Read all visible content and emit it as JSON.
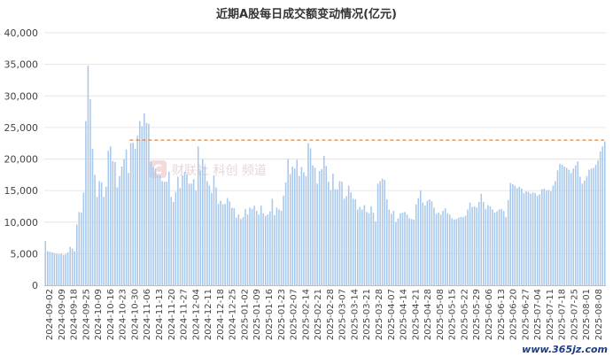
{
  "chart_data": {
    "type": "bar",
    "title": "近期A股每日成交额变动情况(亿元)",
    "ylabel": "",
    "xlabel": "",
    "ylim": [
      0,
      40000
    ],
    "yticks": [
      "0",
      "5,000",
      "10,000",
      "15,000",
      "20,000",
      "25,000",
      "30,000",
      "35,000",
      "40,000"
    ],
    "grid": "horizontal",
    "bar_color": "#a8c8ec",
    "reference_line": {
      "value": 23000,
      "start_index": 38,
      "color": "#e8823a",
      "style": "dashed"
    },
    "x_tick_labels": [
      "2024-09-02",
      "2024-09-09",
      "2024-09-18",
      "2024-09-25",
      "2024-10-09",
      "2024-10-16",
      "2024-10-23",
      "2024-10-30",
      "2024-11-06",
      "2024-11-13",
      "2024-11-20",
      "2024-11-27",
      "2024-12-04",
      "2024-12-11",
      "2024-12-18",
      "2024-12-25",
      "2025-01-02",
      "2025-01-09",
      "2025-01-16",
      "2025-01-23",
      "2025-02-07",
      "2025-02-14",
      "2025-02-21",
      "2025-02-28",
      "2025-03-07",
      "2025-03-14",
      "2025-03-21",
      "2025-03-28",
      "2025-04-07",
      "2025-04-14",
      "2025-04-21",
      "2025-04-28",
      "2025-05-08",
      "2025-05-15",
      "2025-05-22",
      "2025-05-29",
      "2025-06-06",
      "2025-06-13",
      "2025-06-20",
      "2025-06-27",
      "2025-07-04",
      "2025-07-11",
      "2025-07-18",
      "2025-07-25",
      "2025-08-01",
      "2025-08-08"
    ],
    "values": [
      7000,
      5400,
      5300,
      5200,
      5100,
      5000,
      4900,
      5000,
      4800,
      4900,
      5200,
      6100,
      5800,
      5400,
      9600,
      11600,
      11500,
      14700,
      26000,
      34800,
      29500,
      21600,
      17500,
      14000,
      16500,
      16300,
      14000,
      15600,
      21300,
      22000,
      19700,
      19500,
      15500,
      17300,
      18800,
      20000,
      21500,
      17800,
      22500,
      22600,
      21600,
      23700,
      26000,
      25200,
      27200,
      25700,
      25600,
      19500,
      18700,
      18500,
      17400,
      17400,
      16500,
      16400,
      16400,
      18000,
      14000,
      13200,
      14800,
      17200,
      15400,
      17400,
      18000,
      17600,
      16100,
      16100,
      16800,
      15000,
      22000,
      18100,
      20000,
      18800,
      16500,
      15800,
      14600,
      17400,
      15500,
      12900,
      13400,
      12800,
      12900,
      13800,
      13300,
      12300,
      12200,
      10700,
      11200,
      10500,
      10800,
      12100,
      11200,
      12300,
      12100,
      12600,
      11800,
      11200,
      12600,
      11400,
      11000,
      11200,
      11700,
      13700,
      11100,
      12300,
      12000,
      11800,
      14200,
      16300,
      20000,
      17600,
      18800,
      18500,
      19900,
      17300,
      18700,
      17900,
      17300,
      22500,
      21700,
      19000,
      18600,
      16100,
      18100,
      18400,
      20500,
      18900,
      16400,
      15100,
      17700,
      15200,
      15200,
      16500,
      16400,
      13700,
      14100,
      15800,
      14700,
      13700,
      13600,
      12000,
      12400,
      12000,
      12700,
      11600,
      11400,
      12500,
      11500,
      10100,
      16100,
      16500,
      16900,
      16700,
      13600,
      12000,
      11300,
      11800,
      10000,
      10600,
      11400,
      11500,
      11600,
      11200,
      10600,
      10500,
      10400,
      12800,
      13800,
      15000,
      13100,
      12600,
      13400,
      13600,
      13300,
      12300,
      11300,
      11500,
      11200,
      11800,
      12200,
      11400,
      11200,
      10600,
      10400,
      10500,
      10700,
      10800,
      10800,
      11000,
      12000,
      13100,
      12400,
      12500,
      12300,
      13200,
      14500,
      13200,
      12100,
      12700,
      12500,
      12000,
      11500,
      11700,
      12000,
      12100,
      11800,
      10800,
      13500,
      16200,
      16000,
      15800,
      15400,
      15600,
      15300,
      14600,
      14900,
      14800,
      14500,
      14700,
      14600,
      14200,
      14400,
      15200,
      15300,
      15000,
      15100,
      14900,
      15800,
      16500,
      18200,
      19200,
      19100,
      18800,
      18600,
      18300,
      17800,
      18500,
      19000,
      19600,
      17200,
      16100,
      16600,
      17300,
      18300,
      18500,
      18600,
      19100,
      19800,
      21200,
      22000,
      22800
    ]
  },
  "watermark": {
    "text": "财联社 科创 频道"
  },
  "site_mark": {
    "text": "www.365jz.com"
  }
}
